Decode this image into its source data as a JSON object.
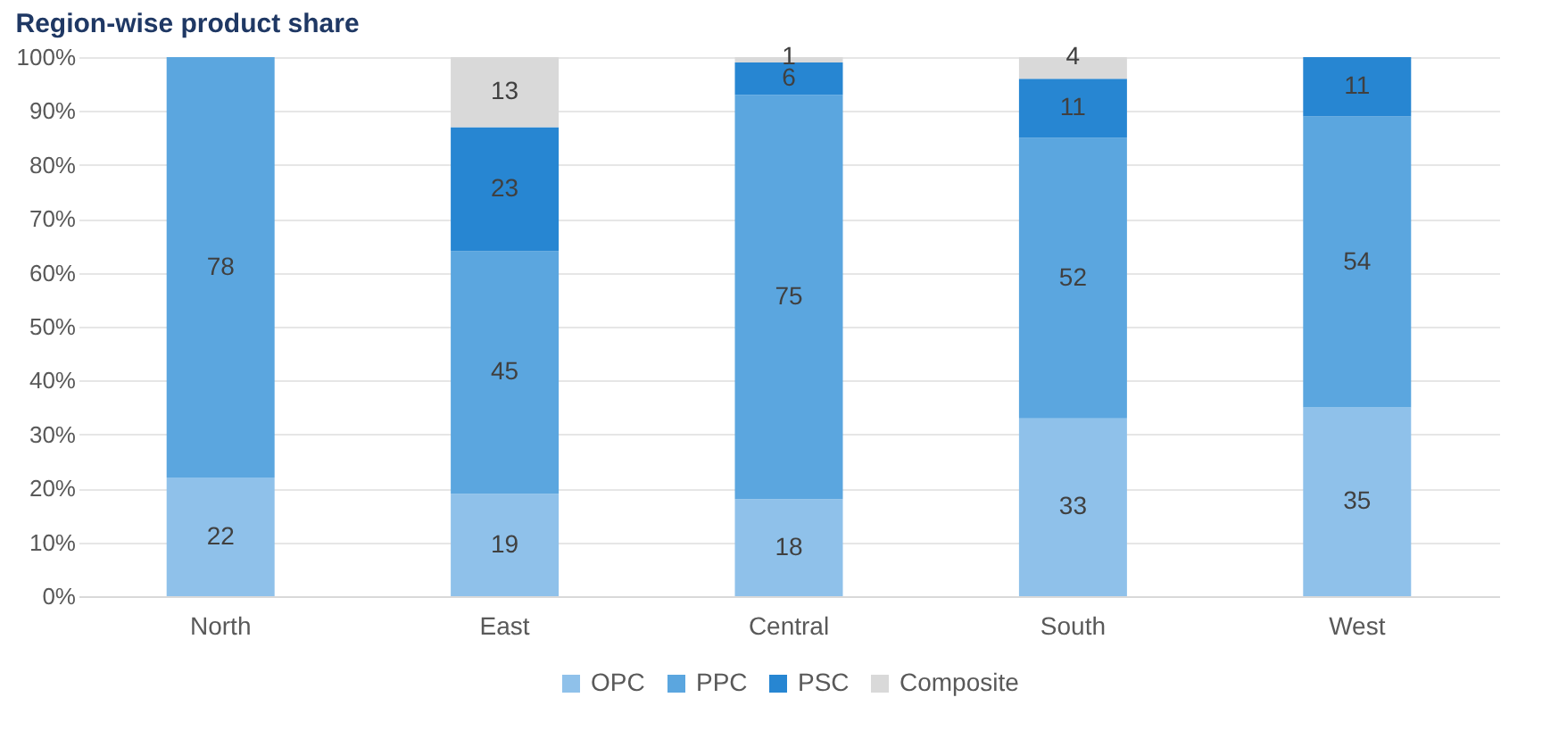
{
  "chart_data": {
    "type": "bar",
    "title": "Region-wise product share",
    "stacked": true,
    "data_labels": true,
    "legend": "bottom",
    "grid": "y",
    "categories": [
      "North",
      "East",
      "Central",
      "South",
      "West"
    ],
    "series": [
      {
        "name": "OPC",
        "color": "#8fc1ea",
        "values": [
          22,
          19,
          18,
          33,
          35
        ]
      },
      {
        "name": "PPC",
        "color": "#5ba6df",
        "values": [
          78,
          45,
          75,
          52,
          54
        ]
      },
      {
        "name": "PSC",
        "color": "#2786d2",
        "values": [
          null,
          23,
          6,
          11,
          11
        ]
      },
      {
        "name": "Composite",
        "color": "#d9d9d9",
        "values": [
          null,
          13,
          1,
          4,
          null
        ]
      }
    ],
    "ylim": [
      0,
      100
    ],
    "yticks": [
      {
        "value": 0,
        "label": "0%"
      },
      {
        "value": 10,
        "label": "10%"
      },
      {
        "value": 20,
        "label": "20%"
      },
      {
        "value": 30,
        "label": "30%"
      },
      {
        "value": 40,
        "label": "40%"
      },
      {
        "value": 50,
        "label": "50%"
      },
      {
        "value": 60,
        "label": "60%"
      },
      {
        "value": 70,
        "label": "70%"
      },
      {
        "value": 80,
        "label": "80%"
      },
      {
        "value": 90,
        "label": "90%"
      },
      {
        "value": 100,
        "label": "100%"
      }
    ]
  }
}
